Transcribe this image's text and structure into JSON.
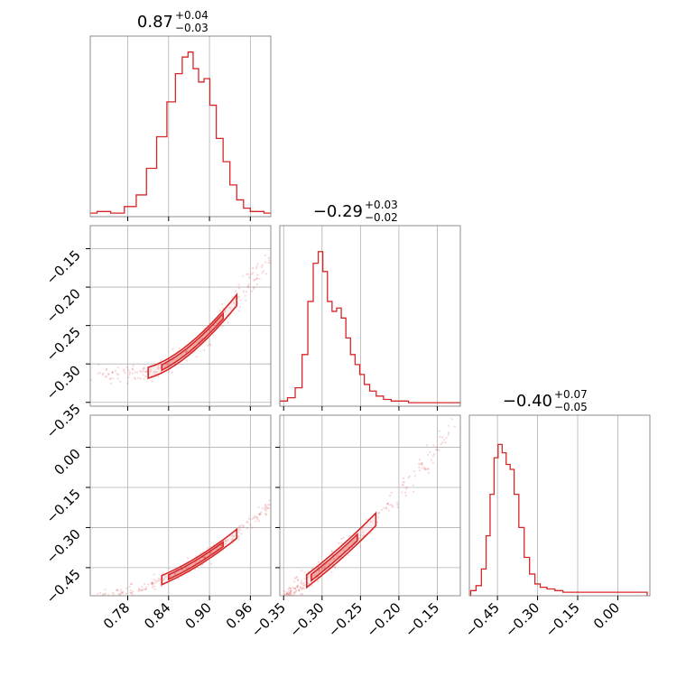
{
  "chart_data": {
    "type": "corner",
    "color": "#d62728",
    "params": [
      {
        "median": "0.87",
        "plus": "+0.04",
        "minus": "−0.03",
        "range": [
          0.725,
          0.99
        ],
        "ticks": [
          0.78,
          0.84,
          0.9,
          0.96
        ],
        "tick_labels": [
          "0.78",
          "0.84",
          "0.90",
          "0.96"
        ]
      },
      {
        "median": "−0.29",
        "plus": "+0.03",
        "minus": "−0.02",
        "range": [
          -0.355,
          -0.12
        ],
        "ticks": [
          -0.35,
          -0.3,
          -0.25,
          -0.2,
          -0.15
        ],
        "tick_labels": [
          "−0.35",
          "−0.30",
          "−0.25",
          "−0.20",
          "−0.15"
        ]
      },
      {
        "median": "−0.40",
        "plus": "+0.07",
        "minus": "−0.05",
        "range": [
          -0.555,
          0.12
        ],
        "ticks": [
          -0.45,
          -0.3,
          -0.15,
          0.0
        ],
        "tick_labels": [
          "−0.45",
          "−0.30",
          "−0.15",
          "0.00"
        ]
      }
    ],
    "y_ticks": {
      "row1": {
        "ticks": [
          -0.15,
          -0.2,
          -0.25,
          -0.3,
          -0.35
        ],
        "tick_labels": [
          "−0.15",
          "−0.20",
          "−0.25",
          "−0.30",
          "−0.35"
        ]
      },
      "row2": {
        "ticks": [
          0.0,
          -0.15,
          -0.3,
          -0.45
        ],
        "tick_labels": [
          "0.00",
          "−0.15",
          "−0.30",
          "−0.45"
        ]
      }
    },
    "hist1d": [
      {
        "x": [
          0.725,
          0.745,
          0.765,
          0.785,
          0.8,
          0.815,
          0.83,
          0.845,
          0.855,
          0.865,
          0.872,
          0.88,
          0.888,
          0.896,
          0.905,
          0.915,
          0.925,
          0.935,
          0.945,
          0.955,
          0.965,
          0.975,
          0.985
        ],
        "y": [
          0.01,
          0.02,
          0.01,
          0.05,
          0.12,
          0.28,
          0.47,
          0.68,
          0.85,
          0.95,
          0.98,
          0.88,
          0.8,
          0.82,
          0.66,
          0.46,
          0.32,
          0.18,
          0.09,
          0.04,
          0.02,
          0.02,
          0.01
        ]
      },
      {
        "x": [
          -0.35,
          -0.34,
          -0.33,
          -0.322,
          -0.315,
          -0.308,
          -0.302,
          -0.296,
          -0.29,
          -0.284,
          -0.278,
          -0.272,
          -0.266,
          -0.26,
          -0.254,
          -0.248,
          -0.242,
          -0.234,
          -0.225,
          -0.215,
          -0.205,
          -0.195,
          -0.18,
          -0.16,
          -0.14,
          -0.125
        ],
        "y": [
          0.02,
          0.04,
          0.1,
          0.3,
          0.62,
          0.85,
          0.92,
          0.8,
          0.62,
          0.56,
          0.58,
          0.52,
          0.4,
          0.3,
          0.24,
          0.18,
          0.12,
          0.08,
          0.05,
          0.03,
          0.02,
          0.02,
          0.01,
          0.01,
          0.01,
          0.01
        ]
      },
      {
        "x": [
          -0.54,
          -0.52,
          -0.5,
          -0.485,
          -0.47,
          -0.455,
          -0.44,
          -0.425,
          -0.41,
          -0.395,
          -0.38,
          -0.36,
          -0.34,
          -0.32,
          -0.3,
          -0.28,
          -0.25,
          -0.22,
          -0.19,
          -0.15,
          -0.1,
          -0.05,
          0.0,
          0.05,
          0.1
        ],
        "y": [
          0.02,
          0.05,
          0.15,
          0.35,
          0.6,
          0.82,
          0.9,
          0.85,
          0.78,
          0.75,
          0.6,
          0.4,
          0.22,
          0.12,
          0.06,
          0.04,
          0.03,
          0.02,
          0.01,
          0.01,
          0.01,
          0.01,
          0.01,
          0.01,
          0.01
        ]
      }
    ]
  }
}
